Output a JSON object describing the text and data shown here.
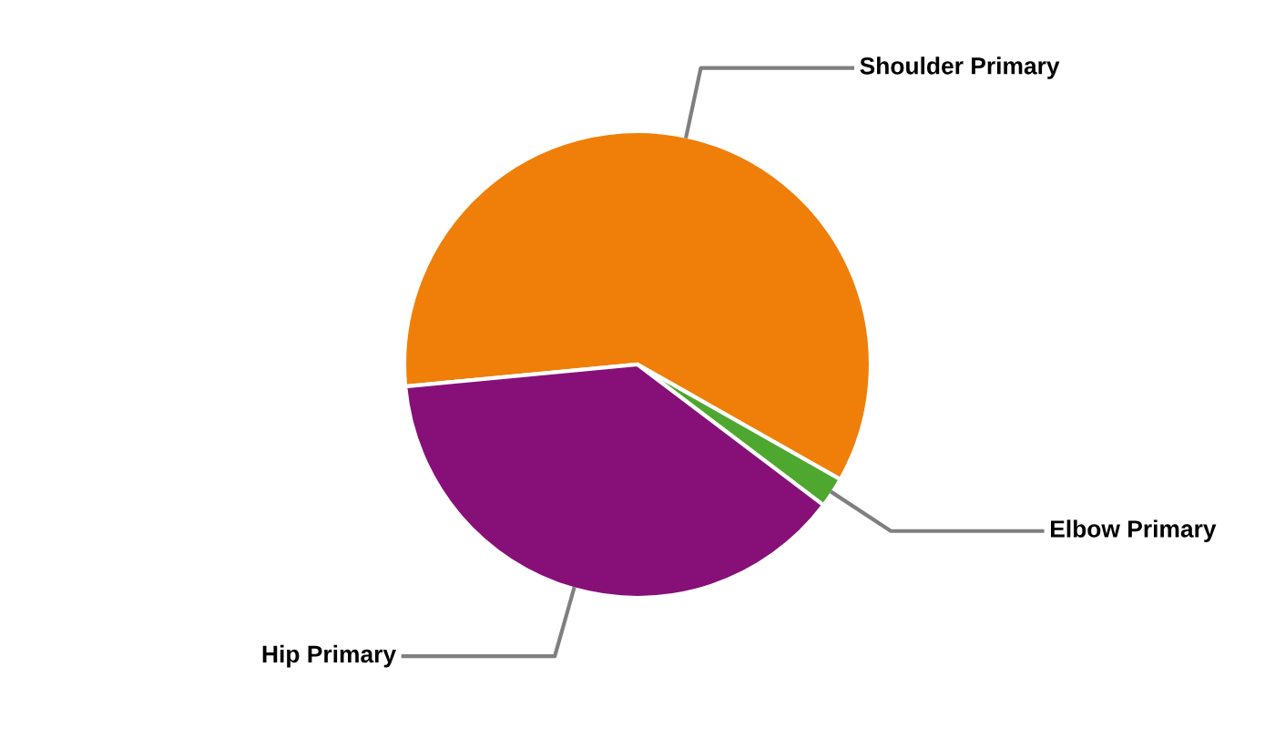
{
  "chart_data": {
    "type": "pie",
    "categories": [
      "Shoulder Primary",
      "Elbow Primary",
      "Hip Primary"
    ],
    "values": [
      59.7,
      2.1,
      38.2
    ],
    "colors": [
      "#f07f09",
      "#4ea72e",
      "#871078"
    ],
    "legend": false
  }
}
